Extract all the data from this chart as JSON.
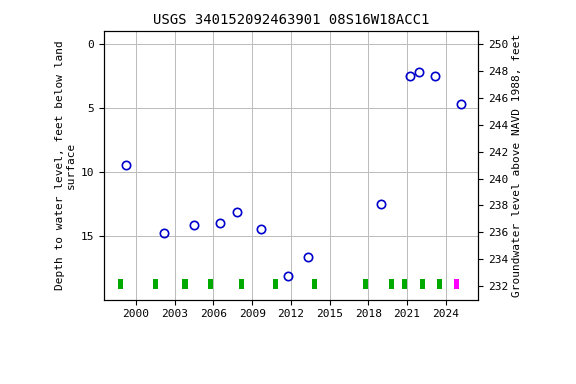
{
  "title": "USGS 340152092463901 08S16W18ACC1",
  "ylabel_left": "Depth to water level, feet below land\nsurface",
  "ylabel_right": "Groundwater level above NAVD 1988, feet",
  "ylim_left": [
    20,
    -1
  ],
  "ylim_right": [
    231,
    251
  ],
  "xlim": [
    1997.5,
    2026.5
  ],
  "data_points": [
    {
      "year": 1999.2,
      "depth": 9.5
    },
    {
      "year": 2002.2,
      "depth": 14.8
    },
    {
      "year": 2004.5,
      "depth": 14.2
    },
    {
      "year": 2006.5,
      "depth": 14.0
    },
    {
      "year": 2007.8,
      "depth": 13.2
    },
    {
      "year": 2009.7,
      "depth": 14.5
    },
    {
      "year": 2011.8,
      "depth": 18.2
    },
    {
      "year": 2013.3,
      "depth": 16.7
    },
    {
      "year": 2019.0,
      "depth": 12.5
    },
    {
      "year": 2021.2,
      "depth": 2.5
    },
    {
      "year": 2021.9,
      "depth": 2.2
    },
    {
      "year": 2023.2,
      "depth": 2.5
    },
    {
      "year": 2025.2,
      "depth": 4.7
    }
  ],
  "marker_color": "#0000cc",
  "marker_size": 6,
  "marker_style": "o",
  "marker_facecolor": "none",
  "marker_edgewidth": 1.2,
  "grid_color": "#bbbbbb",
  "background_color": "#ffffff",
  "legend_approved_color": "#00aa00",
  "legend_provisional_color": "#ff00ff",
  "approved_bar_positions": [
    1998.8,
    2001.5,
    2003.8,
    2005.8,
    2008.2,
    2010.8,
    2013.8,
    2017.8,
    2019.8,
    2020.8,
    2022.2,
    2023.5
  ],
  "provisional_bar_positions": [
    2024.8
  ],
  "yticks_left": [
    0,
    5,
    10,
    15
  ],
  "yticks_right": [
    232,
    234,
    236,
    238,
    240,
    242,
    244,
    246,
    248,
    250
  ],
  "xticks": [
    2000,
    2003,
    2006,
    2009,
    2012,
    2015,
    2018,
    2021,
    2024
  ],
  "font_family": "monospace",
  "title_fontsize": 10,
  "label_fontsize": 8,
  "tick_fontsize": 8
}
